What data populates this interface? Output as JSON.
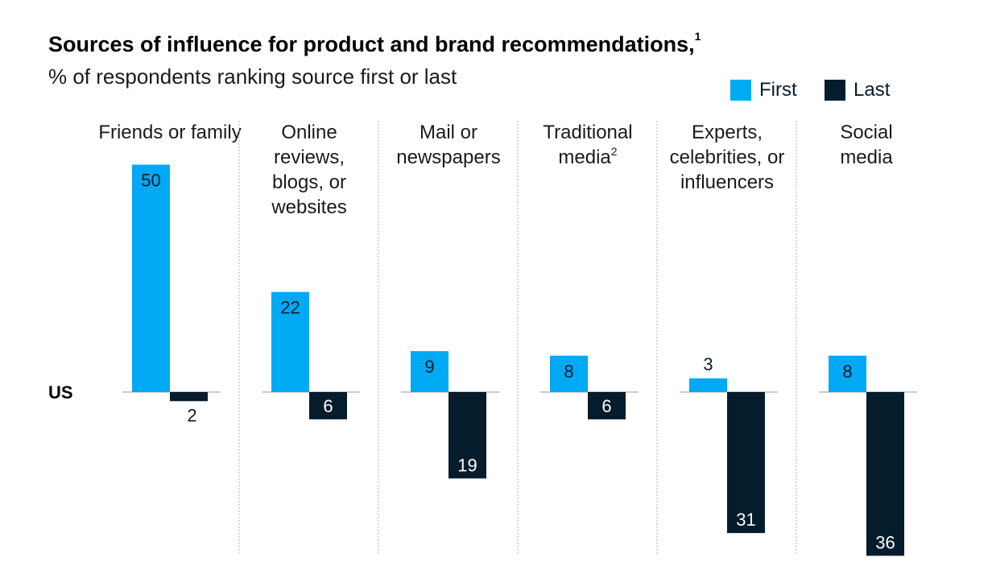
{
  "title": "Sources of influence for product and brand recommendations,",
  "title_footnote": "1",
  "subtitle": "% of respondents ranking source first or last",
  "colors": {
    "first": "#00a9f4",
    "last": "#051c2c",
    "divider": "#b3b3b3",
    "baseline": "#999999"
  },
  "legend": {
    "first": "First",
    "last": "Last"
  },
  "chart_data": {
    "type": "bar",
    "region": "US",
    "categories": [
      [
        "Friends or family"
      ],
      [
        "Online",
        "reviews,",
        "blogs, or",
        "websites"
      ],
      [
        "Mail or",
        "newspapers"
      ],
      [
        "Traditional",
        "media"
      ],
      [
        "Experts,",
        "celebrities, or",
        "influencers"
      ],
      [
        "Social",
        "media"
      ]
    ],
    "category_footnotes": [
      "",
      "",
      "",
      "2",
      "",
      ""
    ],
    "series": [
      {
        "name": "First",
        "values": [
          50,
          22,
          9,
          8,
          3,
          8
        ]
      },
      {
        "name": "Last",
        "values": [
          2,
          6,
          19,
          6,
          31,
          36
        ]
      }
    ],
    "ylim": [
      -36,
      50
    ],
    "grid": false
  }
}
